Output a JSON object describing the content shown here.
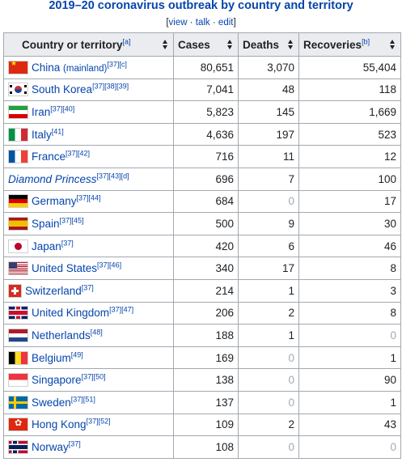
{
  "title": "2019–20 coronavirus outbreak by country and territory",
  "vte": {
    "view": "view",
    "talk": "talk",
    "edit": "edit"
  },
  "columns": [
    {
      "label": "Country or territory",
      "ref": "[a]"
    },
    {
      "label": "Cases",
      "ref": ""
    },
    {
      "label": "Deaths",
      "ref": ""
    },
    {
      "label": "Recoveries",
      "ref": "[b]"
    }
  ],
  "rows": [
    {
      "flag": "china",
      "country": "China",
      "sub": "(mainland)",
      "refs": "[37][c]",
      "italic": false,
      "cases": "80,651",
      "deaths": "3,070",
      "recoveries": "55,404"
    },
    {
      "flag": "korea",
      "country": "South Korea",
      "sub": "",
      "refs": "[37][38][39]",
      "italic": false,
      "cases": "7,041",
      "deaths": "48",
      "recoveries": "118"
    },
    {
      "flag": "iran",
      "country": "Iran",
      "sub": "",
      "refs": "[37][40]",
      "italic": false,
      "cases": "5,823",
      "deaths": "145",
      "recoveries": "1,669"
    },
    {
      "flag": "italy",
      "country": "Italy",
      "sub": "",
      "refs": "[41]",
      "italic": false,
      "cases": "4,636",
      "deaths": "197",
      "recoveries": "523"
    },
    {
      "flag": "france",
      "country": "France",
      "sub": "",
      "refs": "[37][42]",
      "italic": false,
      "cases": "716",
      "deaths": "11",
      "recoveries": "12"
    },
    {
      "flag": "none",
      "country": "Diamond Princess",
      "sub": "",
      "refs": "[37][43][d]",
      "italic": true,
      "cases": "696",
      "deaths": "7",
      "recoveries": "100"
    },
    {
      "flag": "germany",
      "country": "Germany",
      "sub": "",
      "refs": "[37][44]",
      "italic": false,
      "cases": "684",
      "deaths": "0",
      "recoveries": "17"
    },
    {
      "flag": "spain",
      "country": "Spain",
      "sub": "",
      "refs": "[37][45]",
      "italic": false,
      "cases": "500",
      "deaths": "9",
      "recoveries": "30"
    },
    {
      "flag": "japan",
      "country": "Japan",
      "sub": "",
      "refs": "[37]",
      "italic": false,
      "cases": "420",
      "deaths": "6",
      "recoveries": "46"
    },
    {
      "flag": "usa",
      "country": "United States",
      "sub": "",
      "refs": "[37][46]",
      "italic": false,
      "cases": "340",
      "deaths": "17",
      "recoveries": "8"
    },
    {
      "flag": "swiss",
      "country": "Switzerland",
      "sub": "",
      "refs": "[37]",
      "italic": false,
      "cases": "214",
      "deaths": "1",
      "recoveries": "3"
    },
    {
      "flag": "uk",
      "country": "United Kingdom",
      "sub": "",
      "refs": "[37][47]",
      "italic": false,
      "cases": "206",
      "deaths": "2",
      "recoveries": "8"
    },
    {
      "flag": "netherlands",
      "country": "Netherlands",
      "sub": "",
      "refs": "[48]",
      "italic": false,
      "cases": "188",
      "deaths": "1",
      "recoveries": "0"
    },
    {
      "flag": "belgium",
      "country": "Belgium",
      "sub": "",
      "refs": "[49]",
      "italic": false,
      "cases": "169",
      "deaths": "0",
      "recoveries": "1"
    },
    {
      "flag": "singapore",
      "country": "Singapore",
      "sub": "",
      "refs": "[37][50]",
      "italic": false,
      "cases": "138",
      "deaths": "0",
      "recoveries": "90"
    },
    {
      "flag": "sweden",
      "country": "Sweden",
      "sub": "",
      "refs": "[37][51]",
      "italic": false,
      "cases": "137",
      "deaths": "0",
      "recoveries": "1"
    },
    {
      "flag": "hongkong",
      "country": "Hong Kong",
      "sub": "",
      "refs": "[37][52]",
      "italic": false,
      "cases": "109",
      "deaths": "2",
      "recoveries": "43"
    },
    {
      "flag": "norway",
      "country": "Norway",
      "sub": "",
      "refs": "[37]",
      "italic": false,
      "cases": "108",
      "deaths": "0",
      "recoveries": "0"
    }
  ]
}
